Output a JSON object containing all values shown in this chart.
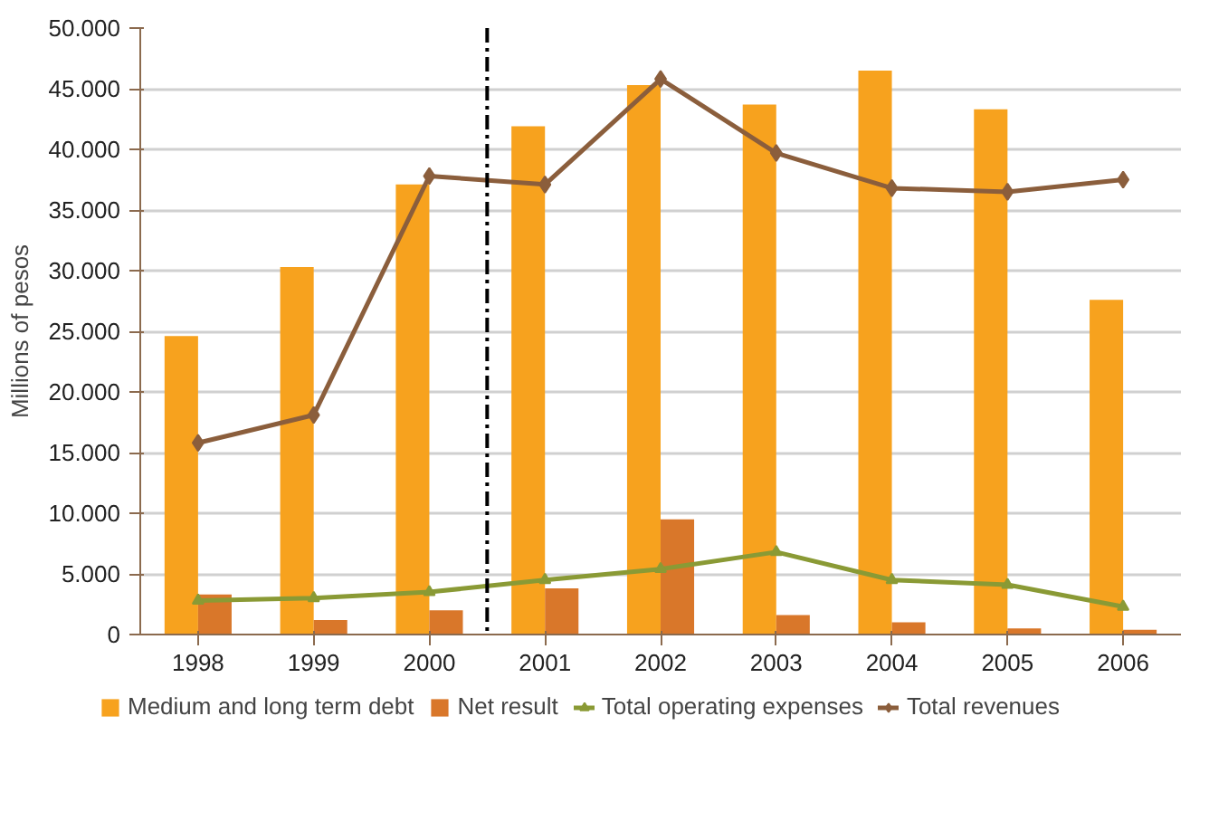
{
  "chart_data": {
    "type": "bar",
    "ylabel": "Millions of pesos",
    "x": [
      1998,
      1999,
      2000,
      2001,
      2002,
      2003,
      2004,
      2005,
      2006
    ],
    "xlim": [
      1997.5,
      2006.5
    ],
    "xticks": [
      1998,
      1999,
      2000,
      2001,
      2002,
      2003,
      2004,
      2005,
      2006
    ],
    "ylim": [
      0,
      50000
    ],
    "yticks": [
      0,
      {
        "value": 5000,
        "label": "5.000"
      },
      {
        "value": 10000,
        "label": "10.000"
      },
      {
        "value": 15000,
        "label": "15.000"
      },
      {
        "value": 20000,
        "label": "20.000"
      },
      {
        "value": 25000,
        "label": "25.000"
      },
      {
        "value": 30000,
        "label": "30.000"
      },
      {
        "value": 35000,
        "label": "35.000"
      },
      {
        "value": 40000,
        "label": "40.000"
      },
      {
        "value": 45000,
        "label": "45.000"
      },
      {
        "value": 50000,
        "label": "50.000"
      }
    ],
    "grid": "y",
    "legend": "bottom",
    "ref_lines": [
      {
        "axis": "x",
        "value": 2000.5,
        "color": "#000000",
        "line_style": "dashdot"
      }
    ],
    "series": [
      {
        "name": "Medium and long term debt",
        "color": "#f7a21e",
        "values": [
          24600,
          30300,
          37100,
          41900,
          45300,
          43700,
          46500,
          43300,
          27600
        ]
      },
      {
        "name": "Net result",
        "color": "#d9772a",
        "values": [
          3300,
          1200,
          2000,
          3800,
          9500,
          1600,
          1000,
          500,
          400
        ]
      },
      {
        "name": "Total operating expenses",
        "type": "line",
        "color": "#8a9a35",
        "marker": "triangle",
        "values": [
          2800,
          3000,
          3500,
          4500,
          5400,
          6800,
          4500,
          4100,
          2300
        ]
      },
      {
        "name": "Total revenues",
        "type": "line",
        "color": "#8b5e3c",
        "marker": "diamond",
        "values": [
          15800,
          18100,
          37800,
          37100,
          45800,
          39700,
          36800,
          36500,
          37500
        ]
      }
    ]
  }
}
